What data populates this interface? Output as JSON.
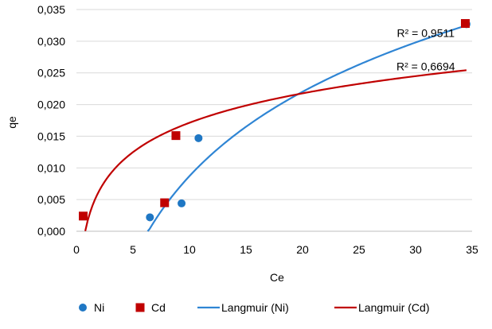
{
  "chart_data": {
    "type": "scatter",
    "title": "",
    "xlabel": "Ce",
    "ylabel": "qe",
    "xlim": [
      0,
      35
    ],
    "ylim": [
      0,
      0.035
    ],
    "x_ticks": [
      0,
      5,
      10,
      15,
      20,
      25,
      30,
      35
    ],
    "x_tick_labels": [
      "0",
      "5",
      "10",
      "15",
      "20",
      "25",
      "30",
      "35"
    ],
    "y_ticks": [
      0,
      0.005,
      0.01,
      0.015,
      0.02,
      0.025,
      0.03,
      0.035
    ],
    "y_tick_labels": [
      "0,000",
      "0,005",
      "0,010",
      "0,015",
      "0,020",
      "0,025",
      "0,030",
      "0,035"
    ],
    "grid": "horizontal",
    "legend_position": "bottom",
    "series": [
      {
        "name": "Ni",
        "kind": "scatter",
        "marker": "circle",
        "color": "#1f77c4",
        "points": [
          [
            6.5,
            0.0022
          ],
          [
            9.3,
            0.0044
          ],
          [
            10.8,
            0.0147
          ],
          [
            34.5,
            0.0327
          ]
        ]
      },
      {
        "name": "Cd",
        "kind": "scatter",
        "marker": "square",
        "color": "#c00000",
        "points": [
          [
            0.6,
            0.0024
          ],
          [
            7.8,
            0.0045
          ],
          [
            8.8,
            0.0151
          ],
          [
            34.4,
            0.0328
          ]
        ]
      },
      {
        "name": "Langmuir (Ni)",
        "kind": "line",
        "color": "#2f85d4",
        "curve": {
          "form": "a*ln(x)+b",
          "a": 0.0192,
          "b": -0.0355,
          "x_range": [
            6.3,
            34.5
          ]
        }
      },
      {
        "name": "Langmuir (Cd)",
        "kind": "line",
        "color": "#c00000",
        "curve": {
          "form": "a*ln(x)+b",
          "a": 0.0067,
          "b": 0.0017,
          "x_range": [
            0.78,
            34.5
          ]
        }
      }
    ],
    "annotations": [
      {
        "text": "R² = 0,9511",
        "x": 30.9,
        "y": 0.0313
      },
      {
        "text": "R² = 0,6694",
        "x": 30.9,
        "y": 0.026
      }
    ]
  }
}
